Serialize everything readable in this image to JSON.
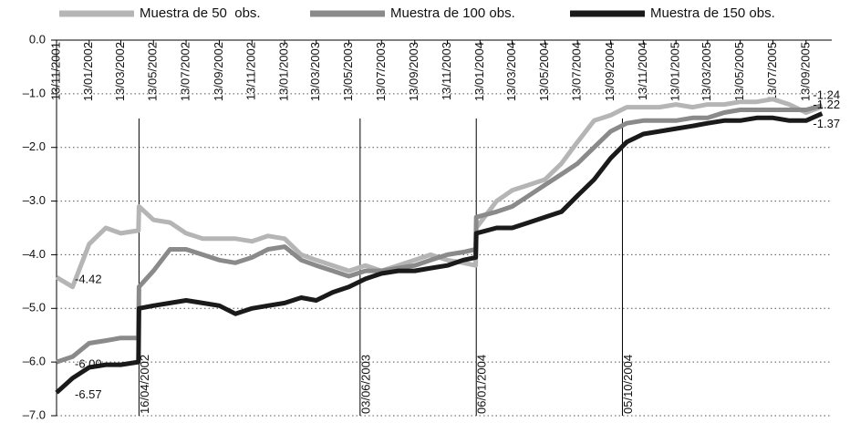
{
  "chart_data": {
    "type": "line",
    "x": [
      "13/11/2001",
      "13/12/2001",
      "13/01/2002",
      "13/02/2002",
      "13/03/2002",
      "15/04/2002",
      "16/04/2002",
      "13/05/2002",
      "13/06/2002",
      "13/07/2002",
      "13/08/2002",
      "13/09/2002",
      "13/10/2002",
      "13/11/2002",
      "13/12/2002",
      "13/01/2003",
      "13/02/2003",
      "13/03/2003",
      "13/04/2003",
      "13/05/2003",
      "13/06/2003",
      "13/07/2003",
      "13/08/2003",
      "13/09/2003",
      "13/10/2003",
      "13/11/2003",
      "13/12/2003",
      "05/01/2004",
      "06/01/2004",
      "13/02/2004",
      "13/03/2004",
      "13/04/2004",
      "13/05/2004",
      "13/06/2004",
      "13/07/2004",
      "13/08/2004",
      "13/09/2004",
      "13/10/2004",
      "13/11/2004",
      "13/12/2004",
      "13/01/2005",
      "13/02/2005",
      "13/03/2005",
      "13/04/2005",
      "13/05/2005",
      "13/06/2005",
      "13/07/2005",
      "13/08/2005",
      "13/09/2005",
      "13/10/2005"
    ],
    "series": [
      {
        "name": "Muestra de 50  obs.",
        "color": "#b5b5b5",
        "values": [
          -4.42,
          -4.6,
          -3.8,
          -3.5,
          -3.6,
          -3.55,
          -3.1,
          -3.35,
          -3.4,
          -3.6,
          -3.7,
          -3.7,
          -3.7,
          -3.75,
          -3.65,
          -3.7,
          -4.0,
          -4.1,
          -4.2,
          -4.3,
          -4.2,
          -4.3,
          -4.2,
          -4.1,
          -4.0,
          -4.1,
          -4.15,
          -4.2,
          -3.5,
          -3.0,
          -2.8,
          -2.7,
          -2.6,
          -2.3,
          -1.9,
          -1.5,
          -1.4,
          -1.25,
          -1.25,
          -1.25,
          -1.2,
          -1.25,
          -1.2,
          -1.2,
          -1.15,
          -1.15,
          -1.1,
          -1.2,
          -1.35,
          -1.24
        ],
        "value_labels": [
          "-4.42",
          null,
          null,
          null,
          null,
          null,
          null,
          null,
          null,
          null,
          null,
          null,
          null,
          null,
          null,
          null,
          null,
          null,
          null,
          null,
          null,
          null,
          null,
          null,
          null,
          null,
          null,
          null,
          null,
          null,
          null,
          null,
          null,
          null,
          null,
          null,
          null,
          null,
          null,
          null,
          null,
          null,
          null,
          null,
          null,
          null,
          null,
          null,
          null,
          "-1.24"
        ]
      },
      {
        "name": "Muestra de 100 obs.",
        "color": "#8a8a8a",
        "values": [
          -6.0,
          -5.9,
          -5.65,
          -5.6,
          -5.55,
          -5.55,
          -4.6,
          -4.3,
          -3.9,
          -3.9,
          -4.0,
          -4.1,
          -4.15,
          -4.05,
          -3.9,
          -3.85,
          -4.1,
          -4.2,
          -4.3,
          -4.4,
          -4.3,
          -4.3,
          -4.25,
          -4.2,
          -4.1,
          -4.0,
          -3.95,
          -3.9,
          -3.3,
          -3.2,
          -3.1,
          -2.9,
          -2.7,
          -2.5,
          -2.3,
          -2.0,
          -1.7,
          -1.55,
          -1.5,
          -1.5,
          -1.5,
          -1.45,
          -1.45,
          -1.35,
          -1.3,
          -1.3,
          -1.3,
          -1.3,
          -1.3,
          -1.22
        ],
        "value_labels": [
          "-6.00",
          null,
          null,
          null,
          null,
          null,
          null,
          null,
          null,
          null,
          null,
          null,
          null,
          null,
          null,
          null,
          null,
          null,
          null,
          null,
          null,
          null,
          null,
          null,
          null,
          null,
          null,
          null,
          null,
          null,
          null,
          null,
          null,
          null,
          null,
          null,
          null,
          null,
          null,
          null,
          null,
          null,
          null,
          null,
          null,
          null,
          null,
          null,
          null,
          "-1.22"
        ]
      },
      {
        "name": "Muestra de 150 obs.",
        "color": "#1a1a1a",
        "values": [
          -6.57,
          -6.3,
          -6.1,
          -6.05,
          -6.05,
          -6.0,
          -5.0,
          -4.95,
          -4.9,
          -4.85,
          -4.9,
          -4.95,
          -5.1,
          -5.0,
          -4.95,
          -4.9,
          -4.8,
          -4.85,
          -4.7,
          -4.6,
          -4.45,
          -4.35,
          -4.3,
          -4.3,
          -4.25,
          -4.2,
          -4.1,
          -4.05,
          -3.6,
          -3.5,
          -3.5,
          -3.4,
          -3.3,
          -3.2,
          -2.9,
          -2.6,
          -2.2,
          -1.9,
          -1.75,
          -1.7,
          -1.65,
          -1.6,
          -1.55,
          -1.5,
          -1.5,
          -1.45,
          -1.45,
          -1.5,
          -1.5,
          -1.37
        ],
        "value_labels": [
          "-6.57",
          null,
          null,
          null,
          null,
          null,
          null,
          null,
          null,
          null,
          null,
          null,
          null,
          null,
          null,
          null,
          null,
          null,
          null,
          null,
          null,
          null,
          null,
          null,
          null,
          null,
          null,
          null,
          null,
          null,
          null,
          null,
          null,
          null,
          null,
          null,
          null,
          null,
          null,
          null,
          null,
          null,
          null,
          null,
          null,
          null,
          null,
          null,
          null,
          "-1.37"
        ]
      }
    ],
    "xlim": [
      "13/11/2001",
      "31/10/2005"
    ],
    "xticks": [
      "13/11/2001",
      "13/01/2002",
      "13/03/2002",
      "13/05/2002",
      "13/07/2002",
      "13/09/2002",
      "13/11/2002",
      "13/01/2003",
      "13/03/2003",
      "13/05/2003",
      "13/07/2003",
      "13/09/2003",
      "13/11/2003",
      "13/01/2004",
      "13/03/2004",
      "13/05/2004",
      "13/07/2004",
      "13/09/2004",
      "13/11/2004",
      "13/01/2005",
      "13/03/2005",
      "13/05/2005",
      "13/07/2005",
      "13/09/2005"
    ],
    "ylim": [
      -7,
      0
    ],
    "yticks": [
      {
        "value": 0,
        "label": "0.0"
      },
      {
        "value": -1,
        "label": "–1.0"
      },
      {
        "value": -2,
        "label": "–2.0"
      },
      {
        "value": -3,
        "label": "–3.0"
      },
      {
        "value": -4,
        "label": "–4.0"
      },
      {
        "value": -5,
        "label": "–5.0"
      },
      {
        "value": -6,
        "label": "–6.0"
      },
      {
        "value": -7,
        "label": "–7.0"
      }
    ],
    "events": [
      "16/04/2002",
      "03/06/2003",
      "06/01/2004",
      "05/10/2004"
    ],
    "grid": true,
    "legend": "top"
  }
}
